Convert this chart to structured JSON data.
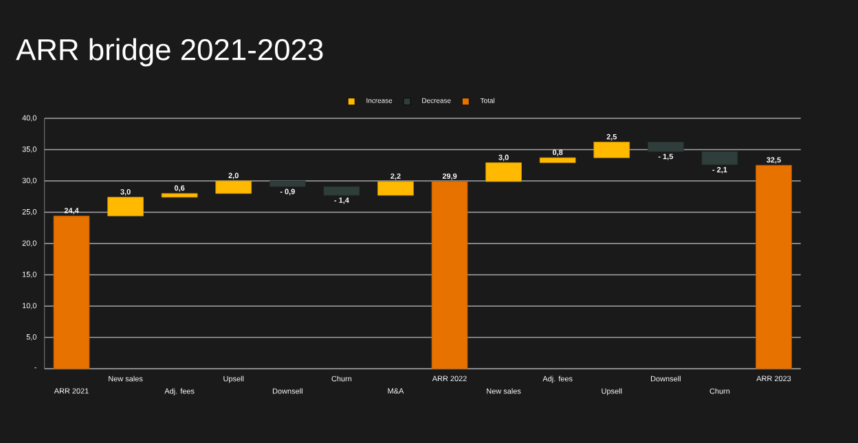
{
  "chart_data": {
    "type": "bar",
    "title": "ARR bridge 2021-2023",
    "categories": [
      "ARR 2021",
      "New sales",
      "Adj. fees",
      "Upsell",
      "Downsell",
      "Churn",
      "M&A",
      "ARR 2022",
      "New sales",
      "Adj. fees",
      "Upsell",
      "Downsell",
      "Churn",
      "ARR 2023"
    ],
    "series": [
      {
        "name": "Increase",
        "color": "#ffb900",
        "base": [
          null,
          24.4,
          27.4,
          28.0,
          null,
          null,
          27.7,
          null,
          29.9,
          32.9,
          33.7,
          null,
          null,
          null
        ],
        "values": [
          null,
          3.0,
          0.6,
          2.0,
          null,
          null,
          2.2,
          null,
          3.0,
          0.8,
          2.5,
          null,
          null,
          null
        ],
        "value_labels": [
          null,
          "3,0",
          "0,6",
          "2,0",
          null,
          null,
          "2,2",
          null,
          "3,0",
          "0,8",
          "2,5",
          null,
          null,
          null
        ]
      },
      {
        "name": "Decrease",
        "color": "#2f3d3b",
        "base": [
          null,
          null,
          null,
          null,
          30.0,
          29.1,
          null,
          null,
          null,
          null,
          null,
          36.2,
          34.7,
          null
        ],
        "values": [
          null,
          null,
          null,
          null,
          -0.9,
          -1.4,
          null,
          null,
          null,
          null,
          null,
          -1.5,
          -2.1,
          null
        ],
        "value_labels": [
          null,
          null,
          null,
          null,
          "- 0,9",
          "- 1,4",
          null,
          null,
          null,
          null,
          null,
          "- 1,5",
          "- 2,1",
          null
        ]
      },
      {
        "name": "Total",
        "color": "#e87200",
        "base": [
          0,
          null,
          null,
          null,
          null,
          null,
          null,
          0,
          null,
          null,
          null,
          null,
          null,
          0
        ],
        "values": [
          24.4,
          null,
          null,
          null,
          null,
          null,
          null,
          29.9,
          null,
          null,
          null,
          null,
          null,
          32.5
        ],
        "value_labels": [
          "24,4",
          null,
          null,
          null,
          null,
          null,
          null,
          "29,9",
          null,
          null,
          null,
          null,
          null,
          "32,5"
        ]
      }
    ],
    "ylim": [
      0,
      40
    ],
    "yticks": [
      {
        "value": 0,
        "label": "-"
      },
      {
        "value": 5,
        "label": "5,0"
      },
      {
        "value": 10,
        "label": "10,0"
      },
      {
        "value": 15,
        "label": "15,0"
      },
      {
        "value": 20,
        "label": "20,0"
      },
      {
        "value": 25,
        "label": "25,0"
      },
      {
        "value": 30,
        "label": "30,0"
      },
      {
        "value": 35,
        "label": "35,0"
      },
      {
        "value": 40,
        "label": "40,0"
      }
    ],
    "grid": "y",
    "legend": "top"
  }
}
